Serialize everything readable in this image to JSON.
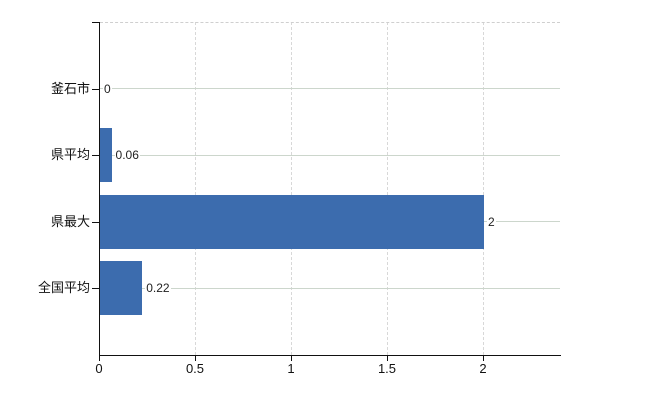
{
  "chart_data": {
    "type": "bar",
    "orientation": "horizontal",
    "categories": [
      "釜石市",
      "県平均",
      "県最大",
      "全国平均"
    ],
    "values": [
      0,
      0.06,
      2,
      0.22
    ],
    "value_labels": [
      "0",
      "0.06",
      "2",
      "0.22"
    ],
    "x_tick_labels": [
      "0",
      "0.5",
      "1",
      "1.5",
      "2"
    ],
    "x_tick_values": [
      0,
      0.5,
      1,
      1.5,
      2
    ],
    "xlim": [
      0,
      2.4
    ],
    "grid": true,
    "legend": false,
    "bar_color": "#3c6cae"
  },
  "colors": {
    "background": "#ffffff",
    "bar": "#3c6cae",
    "axis": "#111111",
    "category_text": "#111111",
    "tick_text": "#111111",
    "value_label_text": "#222222",
    "h_gridline": "#ccd6cc",
    "v_gridline": "#d8d8d8",
    "top_border": "#cfcfcf"
  }
}
